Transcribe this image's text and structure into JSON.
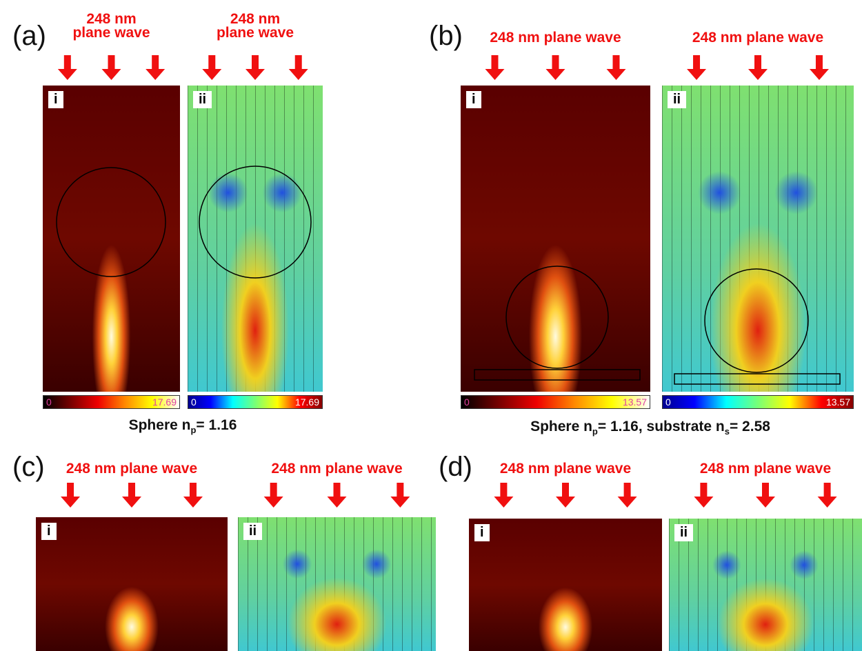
{
  "panels": [
    {
      "label": "(a)",
      "caption": [
        {
          "text": "Sphere n"
        },
        {
          "text": "p",
          "sub": true
        },
        {
          "text": "= 1.16"
        }
      ],
      "subpanels": [
        {
          "label": "i",
          "wave": [
            "248 nm",
            "plane wave"
          ],
          "colorbar": {
            "min": 0,
            "max": 17.69
          }
        },
        {
          "label": "ii",
          "wave": [
            "248 nm",
            "plane wave"
          ],
          "colorbar": {
            "min": 0,
            "max": 17.69
          }
        }
      ]
    },
    {
      "label": "(b)",
      "caption": [
        {
          "text": "Sphere n"
        },
        {
          "text": "p",
          "sub": true
        },
        {
          "text": "= 1.16, substrate n"
        },
        {
          "text": "s",
          "sub": true
        },
        {
          "text": "= 2.58"
        }
      ],
      "subpanels": [
        {
          "label": "i",
          "wave": [
            "248 nm plane wave"
          ],
          "colorbar": {
            "min": 0,
            "max": 13.57
          }
        },
        {
          "label": "ii",
          "wave": [
            "248 nm plane wave"
          ],
          "colorbar": {
            "min": 0,
            "max": 13.57
          }
        }
      ]
    },
    {
      "label": "(c)",
      "subpanels": [
        {
          "label": "i",
          "wave": [
            "248 nm plane wave"
          ]
        },
        {
          "label": "ii",
          "wave": [
            "248 nm plane wave"
          ]
        }
      ]
    },
    {
      "label": "(d)",
      "subpanels": [
        {
          "label": "i",
          "wave": [
            "248 nm plane wave"
          ]
        },
        {
          "label": "ii",
          "wave": [
            "248 nm plane wave"
          ]
        }
      ]
    }
  ]
}
